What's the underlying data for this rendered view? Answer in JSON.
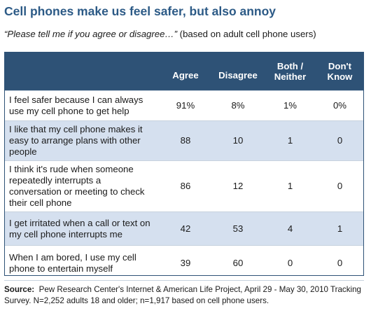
{
  "title": "Cell phones make us feel safer, but also annoy",
  "subtitle": {
    "question": "“Please tell me if you agree or disagree…”",
    "basis": " (based on adult cell phone users)"
  },
  "chart_data": {
    "type": "table",
    "columns": [
      "",
      "Agree",
      "Disagree",
      "Both / Neither",
      "Don't Know"
    ],
    "rows": [
      {
        "statement": "I feel safer because I can always use my cell phone to get help",
        "agree": "91%",
        "disagree": "8%",
        "both_neither": "1%",
        "dont_know": "0%"
      },
      {
        "statement": "I like that my cell phone makes it easy to arrange plans with other people",
        "agree": "88",
        "disagree": "10",
        "both_neither": "1",
        "dont_know": "0"
      },
      {
        "statement": "I think it's rude when someone repeatedly interrupts a conversation or meeting to check their cell phone",
        "agree": "86",
        "disagree": "12",
        "both_neither": "1",
        "dont_know": "0"
      },
      {
        "statement": "I get irritated when a call or text on my cell phone interrupts me",
        "agree": "42",
        "disagree": "53",
        "both_neither": "4",
        "dont_know": "1"
      },
      {
        "statement": "When I am bored, I use my cell phone to entertain myself",
        "agree": "39",
        "disagree": "60",
        "both_neither": "0",
        "dont_know": "0"
      }
    ]
  },
  "source": {
    "label": "Source:",
    "text": "  Pew Research Center's Internet & American Life Project, April 29 - May 30, 2010 Tracking Survey. N=2,252 adults 18 and older; n=1,917 based on cell phone users."
  },
  "colors": {
    "title": "#2c5a86",
    "header_bg": "#2e5276",
    "header_text": "#ffffff",
    "alt_row_bg": "#d5e0ef"
  }
}
